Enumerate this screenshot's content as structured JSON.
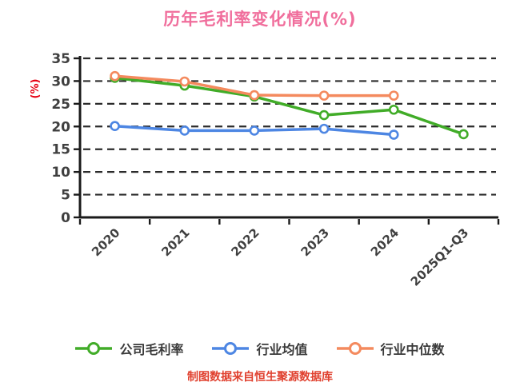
{
  "title": "历年毛利率变化情况(%)",
  "y_axis_unit": "(%)",
  "footer": "制图数据来自恒生聚源数据库",
  "colors": {
    "title": "#F06E9C",
    "y_axis_unit": "#E60012",
    "footer": "#E0402E",
    "tick_text": "#3F3F3F",
    "grid": "#2B2B2B",
    "spine": "#1A1A1A",
    "legend_text": "#3A3A3A",
    "marker_fill": "#FFFFFF",
    "series_company": "#41AC28",
    "series_mean": "#4D86E3",
    "series_median": "#F48A5E"
  },
  "chart_data": {
    "type": "line",
    "title": "历年毛利率变化情况(%)",
    "ylabel": "(%)",
    "xlabel": "",
    "categories": [
      "2020",
      "2021",
      "2022",
      "2023",
      "2024",
      "2025Q1-Q3"
    ],
    "series": [
      {
        "id": "company-gross-margin",
        "name": "公司毛利率",
        "color": "#41AC28",
        "values": [
          30.7,
          29.0,
          26.6,
          22.5,
          23.7,
          18.3
        ]
      },
      {
        "id": "industry-mean",
        "name": "行业均值",
        "color": "#4D86E3",
        "values": [
          20.1,
          19.1,
          19.1,
          19.5,
          18.2,
          null
        ]
      },
      {
        "id": "industry-median",
        "name": "行业中位数",
        "color": "#F48A5E",
        "values": [
          31.1,
          29.9,
          26.9,
          26.8,
          26.8,
          null
        ]
      }
    ],
    "ylim": [
      0,
      35
    ],
    "yticks": [
      0,
      5,
      10,
      15,
      20,
      25,
      30,
      35
    ],
    "grid": "horizontal-dashed",
    "legend_position": "bottom",
    "marker": "circle-white-fill",
    "x_label_rotation_deg": 45
  }
}
